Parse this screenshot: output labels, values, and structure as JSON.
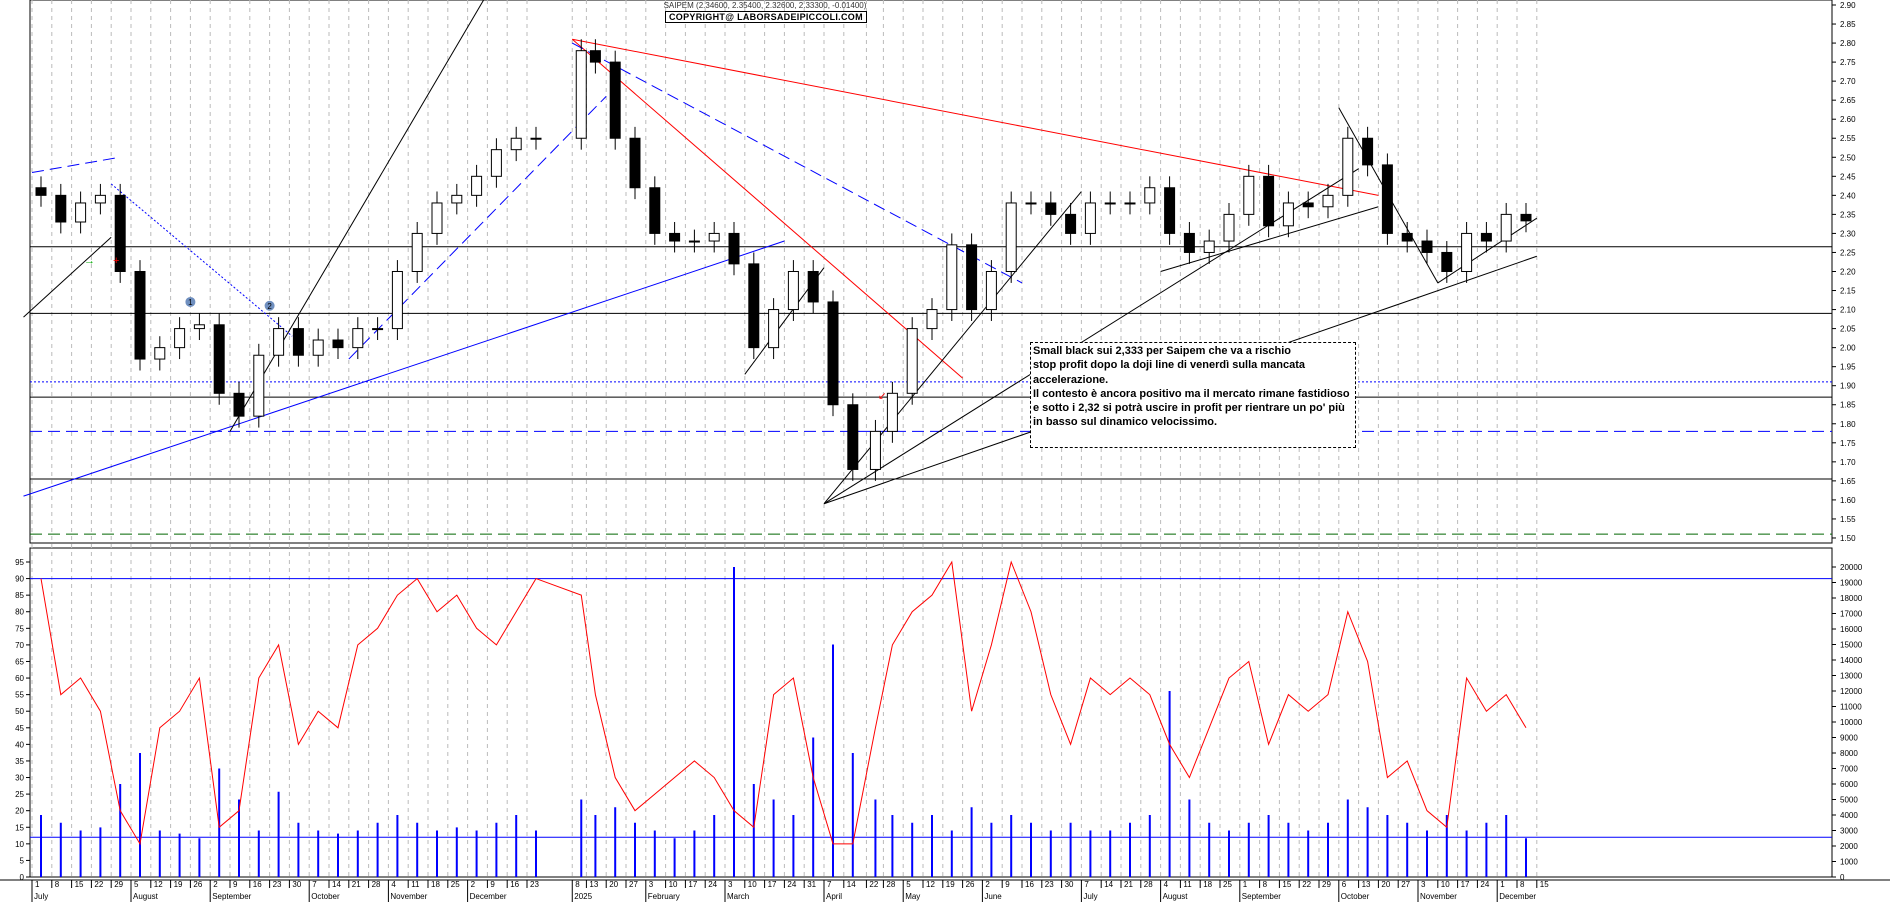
{
  "header": {
    "title": "SAIPEM (2.34600, 2.35400, 2.32600, 2.33300, -0.01400)",
    "copyright": "COPYRIGHT@ LABORSADEIPICCOLI.COM"
  },
  "annotation": {
    "lines": [
      "Small black sui 2,333 per Saipem che va a rischio",
      "stop profit dopo la doji line di venerdì sulla mancata",
      "accelerazione.",
      "Il contesto è ancora positivo ma il mercato rimane fastidioso",
      "e sotto i 2,32 si potrà uscire in profit  per rientrare un po' più",
      "in basso sul dinamico velocissimo."
    ]
  },
  "markers": [
    {
      "label": "1",
      "date": "2024-08-26",
      "price": 2.12
    },
    {
      "label": "2",
      "date": "2024-09-23",
      "price": 2.11
    }
  ],
  "chart_data": {
    "type": "candlestick",
    "symbol": "SAIPEM",
    "price_axis": {
      "min": 1.5,
      "max": 2.9,
      "step": 0.05
    },
    "oscillator_axis": {
      "min": 0,
      "max": 95,
      "step": 5,
      "levels": [
        90,
        12
      ]
    },
    "volume_axis": {
      "min": 0,
      "max": 20000,
      "step": 1000
    },
    "grid": "vertical dashed",
    "x_ticks": [
      {
        "date": "2024-07-01",
        "label": "1",
        "month": "July"
      },
      {
        "date": "2024-07-08",
        "label": "8"
      },
      {
        "date": "2024-07-15",
        "label": "15"
      },
      {
        "date": "2024-07-22",
        "label": "22"
      },
      {
        "date": "2024-07-29",
        "label": "29"
      },
      {
        "date": "2024-08-05",
        "label": "5",
        "month": "August"
      },
      {
        "date": "2024-08-12",
        "label": "12"
      },
      {
        "date": "2024-08-19",
        "label": "19"
      },
      {
        "date": "2024-08-26",
        "label": "26"
      },
      {
        "date": "2024-09-02",
        "label": "2",
        "month": "September"
      },
      {
        "date": "2024-09-09",
        "label": "9"
      },
      {
        "date": "2024-09-16",
        "label": "16"
      },
      {
        "date": "2024-09-23",
        "label": "23"
      },
      {
        "date": "2024-09-30",
        "label": "30"
      },
      {
        "date": "2024-10-07",
        "label": "7",
        "month": "October"
      },
      {
        "date": "2024-10-14",
        "label": "14"
      },
      {
        "date": "2024-10-21",
        "label": "21"
      },
      {
        "date": "2024-10-28",
        "label": "28"
      },
      {
        "date": "2024-11-04",
        "label": "4",
        "month": "November"
      },
      {
        "date": "2024-11-11",
        "label": "11"
      },
      {
        "date": "2024-11-18",
        "label": "18"
      },
      {
        "date": "2024-11-25",
        "label": "25"
      },
      {
        "date": "2024-12-02",
        "label": "2",
        "month": "December"
      },
      {
        "date": "2024-12-09",
        "label": "9"
      },
      {
        "date": "2024-12-16",
        "label": "16"
      },
      {
        "date": "2024-12-23",
        "label": "23"
      },
      {
        "date": "2025-01-08",
        "label": "8",
        "month": "2025"
      },
      {
        "date": "2025-01-13",
        "label": "13"
      },
      {
        "date": "2025-01-20",
        "label": "20"
      },
      {
        "date": "2025-01-27",
        "label": "27"
      },
      {
        "date": "2025-02-03",
        "label": "3",
        "month": "February"
      },
      {
        "date": "2025-02-10",
        "label": "10"
      },
      {
        "date": "2025-02-17",
        "label": "17"
      },
      {
        "date": "2025-02-24",
        "label": "24"
      },
      {
        "date": "2025-03-03",
        "label": "3",
        "month": "March"
      },
      {
        "date": "2025-03-10",
        "label": "10"
      },
      {
        "date": "2025-03-17",
        "label": "17"
      },
      {
        "date": "2025-03-24",
        "label": "24"
      },
      {
        "date": "2025-03-31",
        "label": "31"
      },
      {
        "date": "2025-04-07",
        "label": "7",
        "month": "April"
      },
      {
        "date": "2025-04-14",
        "label": "14"
      },
      {
        "date": "2025-04-22",
        "label": "22"
      },
      {
        "date": "2025-04-28",
        "label": "28"
      },
      {
        "date": "2025-05-05",
        "label": "5",
        "month": "May"
      },
      {
        "date": "2025-05-12",
        "label": "12"
      },
      {
        "date": "2025-05-19",
        "label": "19"
      },
      {
        "date": "2025-05-26",
        "label": "26"
      },
      {
        "date": "2025-06-02",
        "label": "2",
        "month": "June"
      },
      {
        "date": "2025-06-09",
        "label": "9"
      },
      {
        "date": "2025-06-16",
        "label": "16"
      },
      {
        "date": "2025-06-23",
        "label": "23"
      },
      {
        "date": "2025-06-30",
        "label": "30"
      },
      {
        "date": "2025-07-07",
        "label": "7",
        "month": "July"
      },
      {
        "date": "2025-07-14",
        "label": "14"
      },
      {
        "date": "2025-07-21",
        "label": "21"
      },
      {
        "date": "2025-07-28",
        "label": "28"
      },
      {
        "date": "2025-08-04",
        "label": "4",
        "month": "August"
      },
      {
        "date": "2025-08-11",
        "label": "11"
      },
      {
        "date": "2025-08-18",
        "label": "18"
      },
      {
        "date": "2025-08-25",
        "label": "25"
      },
      {
        "date": "2025-09-01",
        "label": "1",
        "month": "September"
      },
      {
        "date": "2025-09-08",
        "label": "8"
      },
      {
        "date": "2025-09-15",
        "label": "15"
      },
      {
        "date": "2025-09-22",
        "label": "22"
      },
      {
        "date": "2025-09-29",
        "label": "29"
      },
      {
        "date": "2025-10-06",
        "label": "6",
        "month": "October"
      },
      {
        "date": "2025-10-13",
        "label": "13"
      },
      {
        "date": "2025-10-20",
        "label": "20"
      },
      {
        "date": "2025-10-27",
        "label": "27"
      },
      {
        "date": "2025-11-03",
        "label": "3",
        "month": "November"
      },
      {
        "date": "2025-11-10",
        "label": "10"
      },
      {
        "date": "2025-11-17",
        "label": "17"
      },
      {
        "date": "2025-11-24",
        "label": "24"
      },
      {
        "date": "2025-12-01",
        "label": "1",
        "month": "December"
      },
      {
        "date": "2025-12-08",
        "label": "8"
      },
      {
        "date": "2025-12-15",
        "label": "15"
      }
    ],
    "closes": [
      2.4,
      2.33,
      2.38,
      2.4,
      2.2,
      1.97,
      2.0,
      2.05,
      2.06,
      1.88,
      1.82,
      1.98,
      2.05,
      1.98,
      2.02,
      2.0,
      2.05,
      2.05,
      2.2,
      2.3,
      2.38,
      2.4,
      2.45,
      2.52,
      2.55,
      2.55,
      2.78,
      2.75,
      2.55,
      2.42,
      2.3,
      2.28,
      2.28,
      2.3,
      2.22,
      2.0,
      2.1,
      2.2,
      2.12,
      1.85,
      1.68,
      1.78,
      1.88,
      2.05,
      2.1,
      2.27,
      2.1,
      2.2,
      2.38,
      2.38,
      2.35,
      2.3,
      2.38,
      2.38,
      2.38,
      2.42,
      2.3,
      2.25,
      2.28,
      2.35,
      2.45,
      2.32,
      2.38,
      2.37,
      2.4,
      2.55,
      2.48,
      2.3,
      2.28,
      2.25,
      2.2,
      2.3,
      2.28,
      2.35,
      2.333
    ],
    "oscillator": [
      90,
      55,
      60,
      50,
      20,
      10,
      45,
      50,
      60,
      15,
      20,
      60,
      70,
      40,
      50,
      45,
      70,
      75,
      85,
      90,
      80,
      85,
      75,
      70,
      80,
      90,
      85,
      55,
      30,
      20,
      25,
      30,
      35,
      30,
      20,
      15,
      55,
      60,
      30,
      10,
      10,
      45,
      70,
      80,
      85,
      95,
      50,
      70,
      95,
      80,
      55,
      40,
      60,
      55,
      60,
      55,
      40,
      30,
      45,
      60,
      65,
      40,
      55,
      50,
      55,
      80,
      65,
      30,
      35,
      20,
      15,
      60,
      50,
      55,
      45
    ],
    "volume": [
      4000,
      3500,
      3000,
      3200,
      6000,
      8000,
      3000,
      2800,
      2500,
      7000,
      5000,
      3000,
      5500,
      3500,
      3000,
      2800,
      3000,
      3500,
      4000,
      3500,
      3000,
      3200,
      3000,
      3500,
      4000,
      3000,
      5000,
      4000,
      4500,
      3500,
      3000,
      2500,
      3000,
      4000,
      20000,
      6000,
      5000,
      4000,
      9000,
      15000,
      8000,
      5000,
      4000,
      3500,
      4000,
      3000,
      4500,
      3500,
      4000,
      3500,
      3000,
      3500,
      3000,
      3000,
      3500,
      4000,
      12000,
      5000,
      3500,
      3000,
      3500,
      4000,
      3500,
      3000,
      3500,
      5000,
      4500,
      4000,
      3500,
      3000,
      4000,
      3000,
      3500,
      4000,
      2500
    ],
    "horizontal_lines": [
      {
        "price": 2.265,
        "color": "#000000",
        "style": "solid"
      },
      {
        "price": 2.09,
        "color": "#000000",
        "style": "solid"
      },
      {
        "price": 1.91,
        "color": "#0000ff",
        "style": "dotted"
      },
      {
        "price": 1.87,
        "color": "#000000",
        "style": "solid"
      },
      {
        "price": 1.78,
        "color": "#0000ff",
        "style": "dashed"
      },
      {
        "price": 1.655,
        "color": "#000000",
        "style": "solid"
      },
      {
        "price": 1.51,
        "color": "#006600",
        "style": "dashed"
      }
    ],
    "trendlines": [
      {
        "from": [
          "2025-01-08",
          2.81
        ],
        "to": [
          "2025-10-20",
          2.4
        ],
        "color": "#ff0000",
        "style": "solid"
      },
      {
        "from": [
          "2025-01-08",
          2.81
        ],
        "to": [
          "2025-05-26",
          1.92
        ],
        "color": "#ff0000",
        "style": "solid"
      },
      {
        "from": [
          "2025-01-08",
          2.8
        ],
        "to": [
          "2025-06-16",
          2.17
        ],
        "color": "#0000ff",
        "style": "dashed"
      },
      {
        "from": [
          "2024-06-28",
          1.61
        ],
        "to": [
          "2025-03-24",
          2.28
        ],
        "color": "#0000ff",
        "style": "solid"
      },
      {
        "from": [
          "2024-06-28",
          2.08
        ],
        "to": [
          "2024-07-29",
          2.29
        ],
        "color": "#000000",
        "style": "solid"
      },
      {
        "from": [
          "2024-09-09",
          1.78
        ],
        "to": [
          "2024-12-09",
          2.93
        ],
        "color": "#000000",
        "style": "solid"
      },
      {
        "from": [
          "2024-07-01",
          2.46
        ],
        "to": [
          "2024-08-01",
          2.5
        ],
        "color": "#0000ff",
        "style": "dashed"
      },
      {
        "from": [
          "2024-07-29",
          2.43
        ],
        "to": [
          "2024-10-01",
          2.03
        ],
        "color": "#0000ff",
        "style": "dotted"
      },
      {
        "from": [
          "2024-10-21",
          1.97
        ],
        "to": [
          "2025-01-20",
          2.66
        ],
        "color": "#0000ff",
        "style": "dashed"
      },
      {
        "from": [
          "2025-04-07",
          1.59
        ],
        "to": [
          "2025-07-07",
          2.41
        ],
        "color": "#000000",
        "style": "solid"
      },
      {
        "from": [
          "2025-04-07",
          1.59
        ],
        "to": [
          "2025-10-13",
          2.47
        ],
        "color": "#000000",
        "style": "solid"
      },
      {
        "from": [
          "2025-04-07",
          1.59
        ],
        "to": [
          "2025-12-15",
          2.24
        ],
        "color": "#000000",
        "style": "solid"
      },
      {
        "from": [
          "2025-03-10",
          1.93
        ],
        "to": [
          "2025-04-07",
          2.21
        ],
        "color": "#000000",
        "style": "solid"
      },
      {
        "from": [
          "2025-08-04",
          2.2
        ],
        "to": [
          "2025-10-20",
          2.37
        ],
        "color": "#000000",
        "style": "solid"
      },
      {
        "from": [
          "2025-10-06",
          2.63
        ],
        "to": [
          "2025-11-10",
          2.17
        ],
        "color": "#000000",
        "style": "solid"
      },
      {
        "from": [
          "2025-11-10",
          2.17
        ],
        "to": [
          "2025-12-15",
          2.34
        ],
        "color": "#000000",
        "style": "solid"
      }
    ]
  }
}
